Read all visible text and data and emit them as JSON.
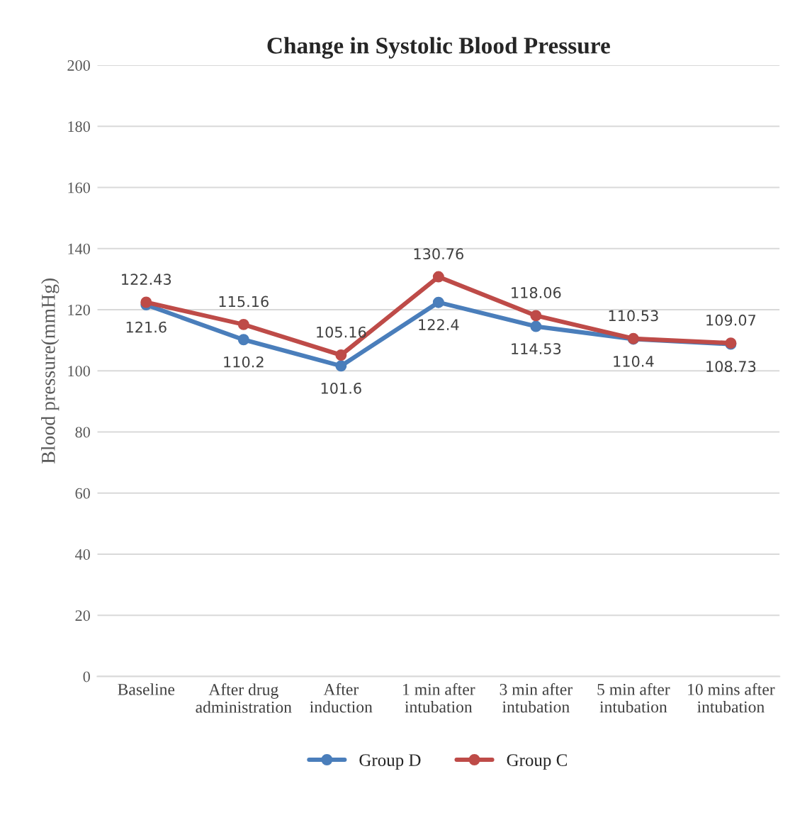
{
  "chart_data": {
    "type": "line",
    "title": "Change in Systolic Blood Pressure",
    "ylabel": "Blood pressure(mmHg)",
    "categories": [
      "Baseline",
      "After drug administration",
      "After induction",
      "1 min after intubation",
      "3 min after intubation",
      "5 min after intubation",
      "10 mins after intubation"
    ],
    "series": [
      {
        "name": "Group D",
        "color": "#4a7ebb",
        "values": [
          121.6,
          110.2,
          101.6,
          122.4,
          114.53,
          110.4,
          108.73
        ]
      },
      {
        "name": "Group C",
        "color": "#be4b48",
        "values": [
          122.43,
          115.16,
          105.16,
          130.76,
          118.06,
          110.53,
          109.07
        ]
      }
    ],
    "ylim": [
      0,
      200
    ],
    "yticks": [
      0,
      20,
      40,
      60,
      80,
      100,
      120,
      140,
      160,
      180,
      200
    ],
    "grid": "y",
    "legend": "bottom",
    "marker": "circle",
    "line_style": "solid",
    "data_labels": true
  }
}
